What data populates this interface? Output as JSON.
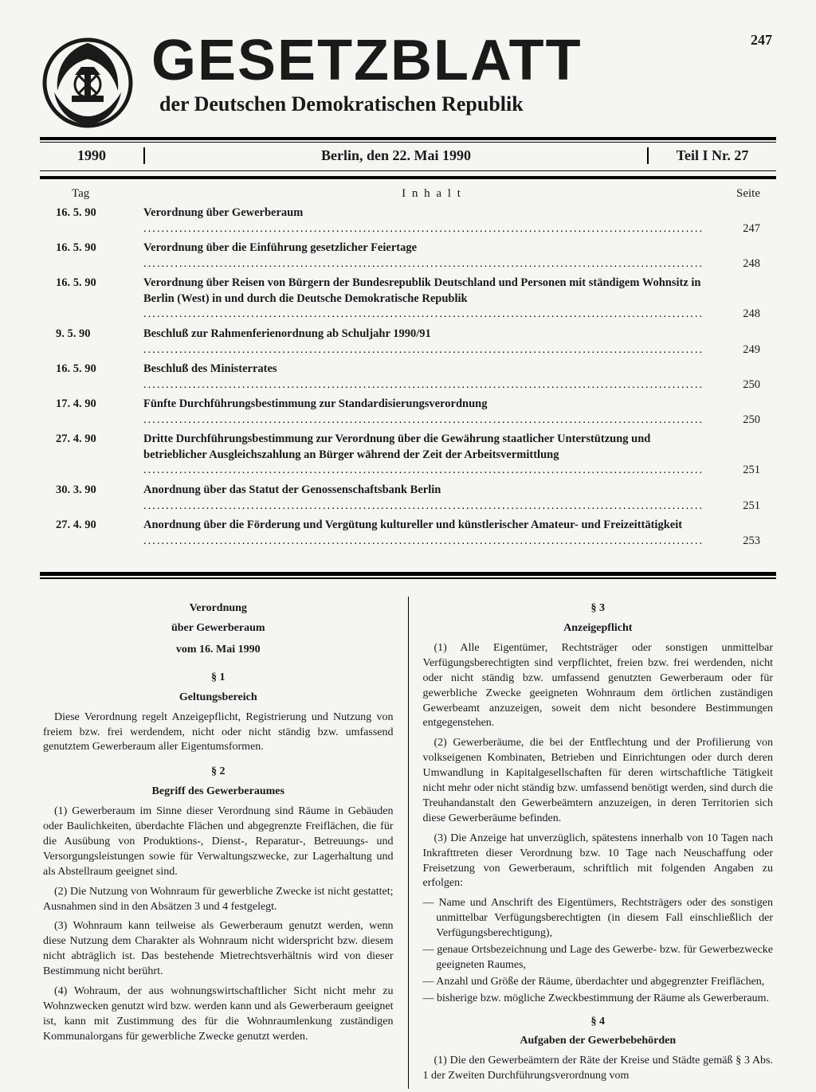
{
  "pageNumber": "247",
  "masthead": {
    "title": "GESETZBLATT",
    "subtitle": "der Deutschen Demokratischen Republik"
  },
  "headerBar": {
    "year": "1990",
    "center": "Berlin, den 22. Mai 1990",
    "issue": "Teil I Nr. 27"
  },
  "tocHead": {
    "day": "Tag",
    "title": "I n h a l t",
    "page": "Seite"
  },
  "toc": [
    {
      "date": "16. 5. 90",
      "title": "Verordnung über Gewerberaum",
      "page": "247"
    },
    {
      "date": "16. 5. 90",
      "title": "Verordnung über die Einführung gesetzlicher Feiertage",
      "page": "248"
    },
    {
      "date": "16. 5. 90",
      "title": "Verordnung über Reisen von Bürgern der Bundesrepublik Deutschland und Personen mit ständigem Wohnsitz in Berlin (West) in und durch die Deutsche Demokratische Republik",
      "page": "248",
      "multi": true
    },
    {
      "date": "9. 5. 90",
      "title": "Beschluß zur Rahmenferienordnung ab Schuljahr 1990/91",
      "page": "249"
    },
    {
      "date": "16. 5. 90",
      "title": "Beschluß des Ministerrates",
      "page": "250"
    },
    {
      "date": "17. 4. 90",
      "title": "Fünfte Durchführungsbestimmung zur Standardisierungsverordnung",
      "page": "250"
    },
    {
      "date": "27. 4. 90",
      "title": "Dritte Durchführungsbestimmung zur Verordnung über die Gewährung staatlicher Unterstützung und betrieblicher Ausgleichszahlung an Bürger während der Zeit der Arbeitsvermittlung",
      "page": "251",
      "multi": true
    },
    {
      "date": "30. 3. 90",
      "title": "Anordnung über das Statut der Genossenschaftsbank Berlin",
      "page": "251"
    },
    {
      "date": "27. 4. 90",
      "title": "Anordnung über die Förderung und Vergütung kultureller und künstlerischer Amateur- und Freizeittätigkeit",
      "page": "253",
      "multi": true
    }
  ],
  "article": {
    "title1": "Verordnung",
    "title2": "über Gewerberaum",
    "date": "vom 16. Mai 1990",
    "sections": {
      "s1": {
        "num": "§ 1",
        "head": "Geltungsbereich",
        "p1": "Diese Verordnung regelt Anzeigepflicht, Registrierung und Nutzung von freiem bzw. frei werdendem, nicht oder nicht ständig bzw. umfassend genutztem Gewerberaum aller Eigentumsformen."
      },
      "s2": {
        "num": "§ 2",
        "head": "Begriff des Gewerberaumes",
        "p1": "(1) Gewerberaum im Sinne dieser Verordnung sind Räume in Gebäuden oder Baulichkeiten, überdachte Flächen und abgegrenzte Freiflächen, die für die Ausübung von Produktions-, Dienst-, Reparatur-, Betreuungs- und Versorgungsleistungen sowie für Verwaltungszwecke, zur Lagerhaltung und als Abstellraum geeignet sind.",
        "p2": "(2) Die Nutzung von Wohnraum für gewerbliche Zwecke ist nicht gestattet; Ausnahmen sind in den Absätzen 3 und 4 festgelegt.",
        "p3": "(3) Wohnraum kann teilweise als Gewerberaum genutzt werden, wenn diese Nutzung dem Charakter als Wohnraum nicht widerspricht bzw. diesem nicht abträglich ist. Das bestehende Mietrechtsverhältnis wird von dieser Bestimmung nicht berührt.",
        "p4": "(4) Wohraum, der aus wohnungswirtschaftlicher Sicht nicht mehr zu Wohnzwecken genutzt wird bzw. werden kann und als Gewerberaum geeignet ist, kann mit Zustimmung des für die Wohnraumlenkung zuständigen Kommunalorgans für gewerbliche Zwecke genutzt werden."
      },
      "s3": {
        "num": "§ 3",
        "head": "Anzeigepflicht",
        "p1": "(1) Alle Eigentümer, Rechtsträger oder sonstigen unmittelbar Verfügungsberechtigten sind verpflichtet, freien bzw. frei werdenden, nicht oder nicht ständig bzw. umfassend genutzten Gewerberaum oder für gewerbliche Zwecke geeigneten Wohnraum dem örtlichen zuständigen Gewerbeamt anzuzeigen, soweit dem nicht besondere Bestimmungen entgegenstehen.",
        "p2": "(2) Gewerberäume, die bei der Entflechtung und der Profilierung von volkseigenen Kombinaten, Betrieben und Einrichtungen oder durch deren Umwandlung in Kapitalgesellschaften für deren wirtschaftliche Tätigkeit nicht mehr oder nicht ständig bzw. umfassend benötigt werden, sind durch die Treuhandanstalt den Gewerbeämtern anzuzeigen, in deren Territorien sich diese Gewerberäume befinden.",
        "p3": "(3) Die Anzeige hat unverzüglich, spätestens innerhalb von 10 Tagen nach Inkrafttreten dieser Verordnung bzw. 10 Tage nach Neuschaffung oder Freisetzung von Gewerberaum, schriftlich mit folgenden Angaben zu erfolgen:",
        "list": [
          "Name und Anschrift des Eigentümers, Rechtsträgers oder des sonstigen unmittelbar Verfügungsberechtigten (in diesem Fall einschließlich der Verfügungsberechtigung),",
          "genaue Ortsbezeichnung und Lage des Gewerbe- bzw. für Gewerbezwecke geeigneten Raumes,",
          "Anzahl und Größe der Räume, überdachter und abgegrenzter Freiflächen,",
          "bisherige bzw. mögliche Zweckbestimmung der Räume als Gewerberaum."
        ]
      },
      "s4": {
        "num": "§ 4",
        "head": "Aufgaben der Gewerbebehörden",
        "p1": "(1) Die den Gewerbeämtern der Räte der Kreise und Städte gemäß § 3 Abs. 1 der Zweiten Durchführungsverordnung vom"
      }
    }
  }
}
